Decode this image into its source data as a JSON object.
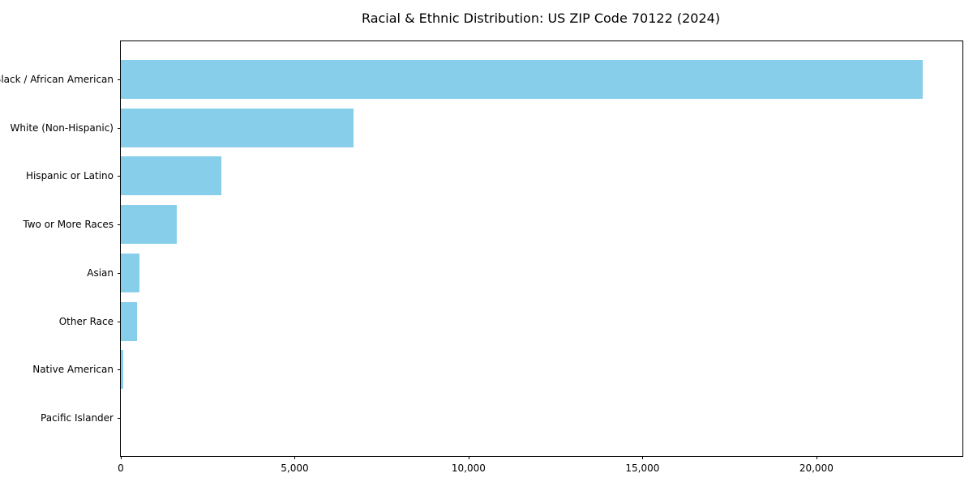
{
  "title": "Racial & Ethnic Distribution: US ZIP Code 70122 (2024)",
  "chart_data": {
    "type": "bar",
    "orientation": "horizontal",
    "title": "Racial & Ethnic Distribution: US ZIP Code 70122 (2024)",
    "categories": [
      "Black / African American",
      "White (Non-Hispanic)",
      "Hispanic or Latino",
      "Two or More Races",
      "Asian",
      "Other Race",
      "Native American",
      "Pacific Islander"
    ],
    "values": [
      23050,
      6690,
      2890,
      1610,
      540,
      460,
      60,
      0
    ],
    "xlabel": "",
    "ylabel": "",
    "xlim": [
      0,
      24200
    ],
    "x_ticks": [
      0,
      5000,
      10000,
      15000,
      20000
    ],
    "x_tick_labels": [
      "0",
      "5,000",
      "10,000",
      "15,000",
      "20,000"
    ],
    "bar_color": "#87CEEB",
    "spine_color": "#000000",
    "grid": false,
    "legend": false
  }
}
